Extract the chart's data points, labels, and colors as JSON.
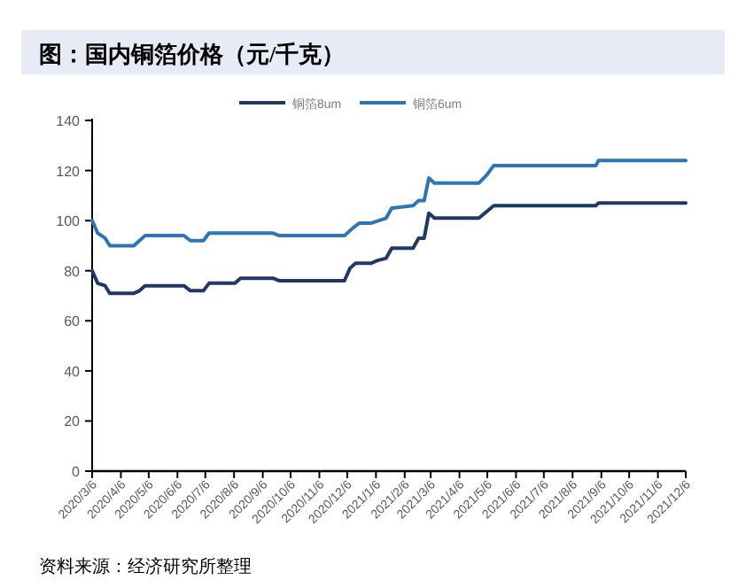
{
  "chart_data": {
    "type": "line",
    "title": "图：国内铜箔价格（元/千克）",
    "annotations": [
      "资料来源：经济研究所整理"
    ],
    "legend": "top",
    "grid": false,
    "marker": "none",
    "line_style": "solid",
    "ylim": [
      0,
      140
    ],
    "yticks": [
      0,
      20,
      40,
      60,
      80,
      100,
      120,
      140
    ],
    "xlim": [
      "2020-03-06",
      "2021-12-06"
    ],
    "xticks": [
      {
        "value": "2020-03-06",
        "label": "2020/3/6"
      },
      {
        "value": "2020-04-06",
        "label": "2020/4/6"
      },
      {
        "value": "2020-05-06",
        "label": "2020/5/6"
      },
      {
        "value": "2020-06-06",
        "label": "2020/6/6"
      },
      {
        "value": "2020-07-06",
        "label": "2020/7/6"
      },
      {
        "value": "2020-08-06",
        "label": "2020/8/6"
      },
      {
        "value": "2020-09-06",
        "label": "2020/9/6"
      },
      {
        "value": "2020-10-06",
        "label": "2020/10/6"
      },
      {
        "value": "2020-11-06",
        "label": "2020/11/6"
      },
      {
        "value": "2020-12-06",
        "label": "2020/12/6"
      },
      {
        "value": "2021-01-06",
        "label": "2021/1/6"
      },
      {
        "value": "2021-02-06",
        "label": "2021/2/6"
      },
      {
        "value": "2021-03-06",
        "label": "2021/3/6"
      },
      {
        "value": "2021-04-06",
        "label": "2021/4/6"
      },
      {
        "value": "2021-05-06",
        "label": "2021/5/6"
      },
      {
        "value": "2021-06-06",
        "label": "2021/6/6"
      },
      {
        "value": "2021-07-06",
        "label": "2021/7/6"
      },
      {
        "value": "2021-08-06",
        "label": "2021/8/6"
      },
      {
        "value": "2021-09-06",
        "label": "2021/9/6"
      },
      {
        "value": "2021-10-06",
        "label": "2021/10/6"
      },
      {
        "value": "2021-11-06",
        "label": "2021/11/6"
      },
      {
        "value": "2021-12-06",
        "label": "2021/12/6"
      }
    ],
    "series": [
      {
        "name": "铜箔8um",
        "color": "#1f3864",
        "x": [
          "2020-03-06",
          "2020-03-12",
          "2020-03-20",
          "2020-03-25",
          "2020-04-20",
          "2020-04-26",
          "2020-05-02",
          "2020-06-13",
          "2020-06-20",
          "2020-07-04",
          "2020-07-10",
          "2020-08-07",
          "2020-08-13",
          "2020-09-17",
          "2020-09-24",
          "2020-12-03",
          "2020-12-09",
          "2020-12-15",
          "2021-01-01",
          "2021-01-07",
          "2021-01-17",
          "2021-01-23",
          "2021-02-15",
          "2021-02-21",
          "2021-02-27",
          "2021-03-04",
          "2021-03-10",
          "2021-04-27",
          "2021-05-13",
          "2021-08-31",
          "2021-09-03",
          "2021-12-06"
        ],
        "values": [
          80,
          75,
          74,
          71,
          71,
          72,
          74,
          74,
          72,
          72,
          75,
          75,
          77,
          77,
          76,
          76,
          81,
          83,
          83,
          84,
          85,
          89,
          89,
          93,
          93,
          103,
          101,
          101,
          106,
          106,
          107,
          107
        ]
      },
      {
        "name": "铜箔6um",
        "color": "#2e75b6",
        "x": [
          "2020-03-06",
          "2020-03-12",
          "2020-03-20",
          "2020-03-25",
          "2020-04-20",
          "2020-04-26",
          "2020-05-02",
          "2020-06-13",
          "2020-06-20",
          "2020-07-04",
          "2020-07-10",
          "2020-09-17",
          "2020-09-24",
          "2020-12-03",
          "2020-12-12",
          "2020-12-19",
          "2021-01-01",
          "2021-01-09",
          "2021-01-17",
          "2021-01-23",
          "2021-02-15",
          "2021-02-21",
          "2021-02-27",
          "2021-03-04",
          "2021-03-10",
          "2021-04-27",
          "2021-05-05",
          "2021-05-13",
          "2021-08-31",
          "2021-09-03",
          "2021-12-06"
        ],
        "values": [
          100,
          95,
          93,
          90,
          90,
          92,
          94,
          94,
          92,
          92,
          95,
          95,
          94,
          94,
          97,
          99,
          99,
          100,
          101,
          105,
          106,
          108,
          108,
          117,
          115,
          115,
          118,
          122,
          122,
          124,
          124
        ]
      }
    ]
  }
}
